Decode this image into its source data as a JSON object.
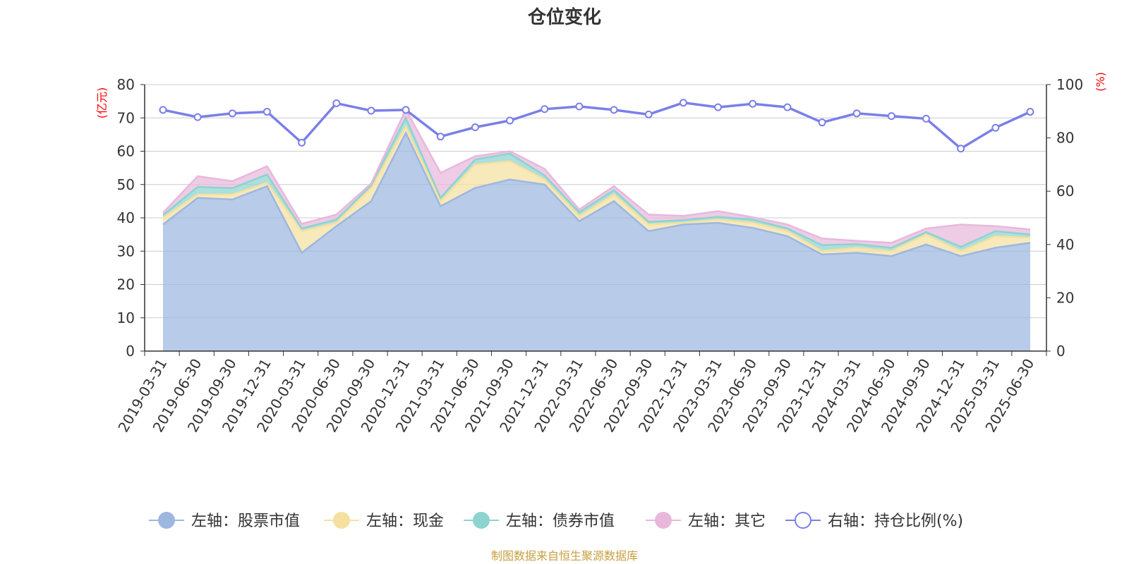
{
  "chart_data": {
    "type": "area",
    "title": "仓位变化",
    "left_axis_unit": "(亿元)",
    "right_axis_unit": "(%)",
    "left_axis": {
      "min": 0,
      "max": 80,
      "ticks": [
        "0",
        "10",
        "20",
        "30",
        "40",
        "50",
        "60",
        "70",
        "80"
      ]
    },
    "right_axis": {
      "min": 0,
      "max": 100,
      "ticks": [
        "0",
        "20",
        "40",
        "60",
        "80",
        "100"
      ]
    },
    "x": [
      "2019-03-31",
      "2019-06-30",
      "2019-09-30",
      "2019-12-31",
      "2020-03-31",
      "2020-06-30",
      "2020-09-30",
      "2020-12-31",
      "2021-03-31",
      "2021-06-30",
      "2021-09-30",
      "2021-12-31",
      "2022-03-31",
      "2022-06-30",
      "2022-09-30",
      "2022-12-31",
      "2023-03-31",
      "2023-06-30",
      "2023-09-30",
      "2023-12-31",
      "2024-03-31",
      "2024-06-30",
      "2024-09-30",
      "2024-12-31",
      "2025-03-31",
      "2025-06-30"
    ],
    "stacked_series": [
      {
        "name": "左轴：股票市值",
        "color": "#9db7e0",
        "values": [
          38,
          46,
          45.5,
          49.5,
          29.5,
          37.5,
          45,
          65.5,
          43.5,
          49,
          51.5,
          50,
          39,
          45,
          36,
          38,
          38.5,
          37,
          34.5,
          29,
          29.5,
          28.5,
          32,
          28.5,
          31,
          32.5
        ]
      },
      {
        "name": "左轴：现金",
        "color": "#f5e0a0",
        "values": [
          2,
          1,
          1.5,
          1,
          6.5,
          1,
          4,
          2,
          1.5,
          7,
          5.5,
          1.5,
          1.5,
          2,
          2,
          0.5,
          1,
          1.5,
          1.5,
          1,
          1.5,
          1.5,
          3,
          1.5,
          3.5,
          1.5
        ]
      },
      {
        "name": "左轴：债券市值",
        "color": "#8dd3d0",
        "values": [
          0.8,
          2.3,
          1.9,
          2.5,
          0.8,
          1,
          0.8,
          2.5,
          1,
          1.5,
          2.3,
          1.2,
          1.2,
          1.3,
          0.8,
          0.8,
          0.8,
          1,
          0.8,
          1.8,
          1.1,
          1,
          0.7,
          1.3,
          1.5,
          1
        ]
      },
      {
        "name": "左轴：其它",
        "color": "#e8b8dc",
        "values": [
          0.7,
          3.2,
          2.1,
          2.5,
          1.4,
          1.5,
          0.5,
          2.5,
          7.5,
          1,
          0.7,
          2,
          0.8,
          1.2,
          2.2,
          1.3,
          1.7,
          0.7,
          1.2,
          2,
          1,
          1.5,
          1.1,
          6.7,
          1.5,
          1.5
        ]
      }
    ],
    "line_series": {
      "name": "右轴：持仓比例(%)",
      "color": "#7b7fe8",
      "values": [
        90.5,
        87.8,
        89.2,
        89.8,
        78.2,
        93,
        90.2,
        90.5,
        80.5,
        84,
        86.5,
        90.8,
        91.8,
        90.5,
        88.8,
        93.2,
        91.5,
        92.8,
        91.5,
        85.8,
        89.2,
        88.2,
        87.2,
        76,
        83.8,
        89.8
      ]
    },
    "legend_position": "bottom",
    "grid": true
  },
  "footer": {
    "source_text": "制图数据来自恒生聚源数据库"
  }
}
